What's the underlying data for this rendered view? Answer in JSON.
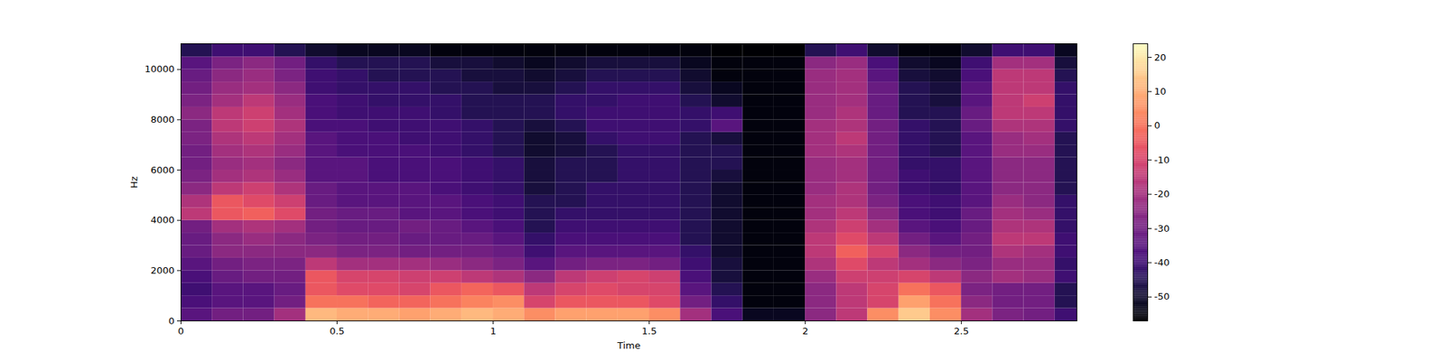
{
  "chart_data": {
    "type": "heatmap",
    "xlabel": "Time",
    "ylabel": "Hz",
    "xlim": [
      0,
      2.87
    ],
    "ylim": [
      0,
      11025
    ],
    "xticks": [
      0,
      0.5,
      1,
      1.5,
      2,
      2.5
    ],
    "yticks": [
      0,
      2000,
      4000,
      6000,
      8000,
      10000
    ],
    "color": "magma",
    "colorbar": {
      "range": [
        -57,
        24
      ],
      "ticks": [
        -50,
        -40,
        -30,
        -20,
        -10,
        0,
        10,
        20
      ]
    },
    "x": [
      0,
      0.1,
      0.2,
      0.3,
      0.4,
      0.5,
      0.6,
      0.7,
      0.8,
      0.9,
      1.0,
      1.1,
      1.2,
      1.3,
      1.4,
      1.5,
      1.6,
      1.7,
      1.8,
      1.9,
      2.0,
      2.1,
      2.2,
      2.3,
      2.4,
      2.5,
      2.6,
      2.7,
      2.8
    ],
    "y": [
      0,
      500,
      1000,
      1500,
      2000,
      2500,
      3000,
      3500,
      4000,
      4500,
      5000,
      5500,
      6000,
      6500,
      7000,
      7500,
      8000,
      8500,
      9000,
      9500,
      10000,
      10500
    ],
    "values": [
      [
        -35,
        -38,
        -40,
        -38,
        -35,
        -32,
        -32,
        -30,
        -15,
        -18,
        -25,
        -28,
        -30,
        -30,
        -28,
        -28,
        -25,
        -28,
        -30,
        -32,
        -35,
        -45
      ],
      [
        -30,
        -35,
        -35,
        -32,
        -30,
        -25,
        -25,
        -20,
        -5,
        -5,
        -15,
        -20,
        -22,
        -20,
        -18,
        -15,
        -15,
        -20,
        -22,
        -25,
        -28,
        -40
      ],
      [
        -30,
        -35,
        -35,
        -30,
        -28,
        -25,
        -22,
        -18,
        -3,
        -8,
        -12,
        -18,
        -20,
        -18,
        -15,
        -12,
        -12,
        -15,
        -20,
        -22,
        -25,
        -40
      ],
      [
        -20,
        -30,
        -32,
        -30,
        -28,
        -25,
        -25,
        -20,
        -8,
        -12,
        -18,
        -22,
        -25,
        -22,
        -20,
        -18,
        -20,
        -22,
        -25,
        -28,
        -30,
        -45
      ],
      [
        12,
        0,
        -5,
        -5,
        -15,
        -25,
        -28,
        -30,
        -30,
        -32,
        -32,
        -35,
        -35,
        -35,
        -35,
        -38,
        -38,
        -38,
        -40,
        -40,
        -42,
        -50
      ],
      [
        10,
        0,
        -8,
        -10,
        -20,
        -28,
        -30,
        -32,
        -32,
        -35,
        -35,
        -35,
        -35,
        -38,
        -38,
        -38,
        -40,
        -40,
        -42,
        -42,
        -45,
        -52
      ],
      [
        10,
        -2,
        -8,
        -10,
        -20,
        -28,
        -30,
        -32,
        -32,
        -35,
        -35,
        -38,
        -38,
        -38,
        -38,
        -40,
        -40,
        -42,
        -42,
        -45,
        -45,
        -52
      ],
      [
        8,
        -2,
        -10,
        -12,
        -20,
        -30,
        -32,
        -30,
        -35,
        -35,
        -35,
        -38,
        -38,
        -38,
        -40,
        -40,
        -40,
        -42,
        -42,
        -45,
        -45,
        -52
      ],
      [
        10,
        0,
        -5,
        -12,
        -22,
        -30,
        -32,
        -32,
        -35,
        -35,
        -38,
        -38,
        -38,
        -40,
        -40,
        -40,
        -42,
        -42,
        -45,
        -45,
        -48,
        -55
      ],
      [
        12,
        3,
        -2,
        -15,
        -25,
        -30,
        -32,
        -35,
        -38,
        -38,
        -40,
        -40,
        -40,
        -42,
        -42,
        -42,
        -45,
        -45,
        -45,
        -48,
        -48,
        -55
      ],
      [
        10,
        5,
        -5,
        -18,
        -28,
        -32,
        -35,
        -38,
        -40,
        -40,
        -42,
        -42,
        -42,
        -45,
        -45,
        -45,
        -45,
        -45,
        -48,
        -48,
        -50,
        -55
      ],
      [
        5,
        -10,
        -15,
        -25,
        -35,
        -40,
        -42,
        -45,
        -45,
        -45,
        -48,
        -48,
        -48,
        -50,
        -50,
        -48,
        -45,
        -45,
        -48,
        -50,
        -52,
        -55
      ],
      [
        8,
        -5,
        -10,
        -15,
        -30,
        -35,
        -38,
        -40,
        -42,
        -45,
        -45,
        -45,
        -45,
        -48,
        -48,
        -45,
        -42,
        -42,
        -45,
        -48,
        -50,
        -55
      ],
      [
        8,
        -5,
        -8,
        -12,
        -28,
        -35,
        -38,
        -40,
        -42,
        -42,
        -42,
        -45,
        -45,
        -45,
        -42,
        -40,
        -40,
        -42,
        -42,
        -45,
        -48,
        -55
      ],
      [
        8,
        -5,
        -10,
        -10,
        -28,
        -35,
        -38,
        -40,
        -42,
        -42,
        -42,
        -42,
        -42,
        -42,
        -40,
        -40,
        -40,
        -40,
        -42,
        -45,
        -48,
        -55
      ],
      [
        5,
        -8,
        -10,
        -12,
        -30,
        -35,
        -38,
        -40,
        -42,
        -42,
        -42,
        -42,
        -42,
        -42,
        -40,
        -40,
        -40,
        -40,
        -42,
        -45,
        -48,
        -55
      ],
      [
        -20,
        -30,
        -35,
        -38,
        -40,
        -42,
        -45,
        -45,
        -45,
        -45,
        -45,
        -45,
        -45,
        -45,
        -45,
        -42,
        -42,
        -45,
        -48,
        -50,
        -52,
        -55
      ],
      [
        -38,
        -42,
        -45,
        -48,
        -48,
        -50,
        -50,
        -50,
        -50,
        -50,
        -50,
        -48,
        -45,
        -45,
        -48,
        -35,
        -40,
        -50,
        -52,
        -55,
        -55,
        -57
      ],
      [
        -52,
        -55,
        -55,
        -55,
        -55,
        -55,
        -55,
        -55,
        -55,
        -55,
        -55,
        -55,
        -55,
        -55,
        -55,
        -55,
        -55,
        -55,
        -55,
        -55,
        -55,
        -57
      ],
      [
        -52,
        -55,
        -55,
        -55,
        -55,
        -55,
        -55,
        -55,
        -55,
        -55,
        -55,
        -55,
        -55,
        -55,
        -55,
        -55,
        -55,
        -55,
        -55,
        -55,
        -55,
        -57
      ],
      [
        -25,
        -25,
        -25,
        -22,
        -18,
        -15,
        -15,
        -18,
        -20,
        -20,
        -22,
        -22,
        -22,
        -20,
        -20,
        -20,
        -22,
        -22,
        -22,
        -22,
        -25,
        -45
      ],
      [
        -15,
        -15,
        -15,
        -12,
        -8,
        -3,
        -8,
        -12,
        -15,
        -18,
        -18,
        -20,
        -20,
        -18,
        -15,
        -18,
        -18,
        -20,
        -20,
        -20,
        -22,
        -40
      ],
      [
        5,
        -10,
        -10,
        -12,
        -15,
        -10,
        -15,
        -20,
        -25,
        -28,
        -30,
        -30,
        -30,
        -30,
        -30,
        -30,
        -32,
        -32,
        -32,
        -35,
        -38,
        -50
      ],
      [
        15,
        8,
        0,
        -10,
        -20,
        -25,
        -30,
        -35,
        -38,
        -38,
        -40,
        -40,
        -42,
        -42,
        -42,
        -42,
        -45,
        -45,
        -45,
        -48,
        -50,
        -55
      ],
      [
        5,
        0,
        -5,
        -15,
        -25,
        -30,
        -35,
        -38,
        -40,
        -40,
        -42,
        -42,
        -42,
        -45,
        -45,
        -45,
        -45,
        -48,
        -48,
        -50,
        -52,
        -55
      ],
      [
        -20,
        -25,
        -28,
        -25,
        -28,
        -30,
        -30,
        -32,
        -32,
        -35,
        -35,
        -35,
        -35,
        -35,
        -35,
        -32,
        -32,
        -35,
        -35,
        -38,
        -40,
        -50
      ],
      [
        -28,
        -30,
        -30,
        -20,
        -22,
        -18,
        -15,
        -18,
        -20,
        -22,
        -25,
        -25,
        -25,
        -22,
        -22,
        -18,
        -15,
        -15,
        -15,
        -15,
        -20,
        -40
      ],
      [
        -30,
        -30,
        -30,
        -22,
        -22,
        -20,
        -15,
        -18,
        -22,
        -25,
        -25,
        -25,
        -25,
        -22,
        -20,
        -18,
        -15,
        -12,
        -15,
        -15,
        -20,
        -40
      ],
      [
        -40,
        -45,
        -45,
        -40,
        -42,
        -40,
        -40,
        -42,
        -42,
        -42,
        -45,
        -45,
        -45,
        -45,
        -45,
        -42,
        -42,
        -42,
        -42,
        -45,
        -48,
        -52
      ]
    ]
  }
}
